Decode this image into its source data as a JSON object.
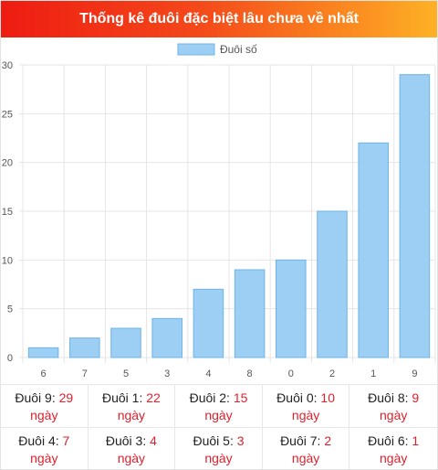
{
  "header": {
    "title": "Thống kê đuôi đặc biệt lâu chưa về nhất"
  },
  "colors": {
    "bar": "#9ccff3",
    "bar_border": "#6fb3e6",
    "grid": "#e5e5e5",
    "accent": "#e0202b"
  },
  "chart_data": {
    "type": "bar",
    "title": "",
    "xlabel": "",
    "ylabel": "",
    "categories": [
      "6",
      "7",
      "5",
      "3",
      "4",
      "8",
      "0",
      "2",
      "1",
      "9"
    ],
    "series": [
      {
        "name": "Đuôi số",
        "values": [
          1,
          2,
          3,
          4,
          7,
          9,
          10,
          15,
          22,
          29
        ]
      }
    ],
    "ylim": [
      0,
      30
    ],
    "yticks": [
      "0",
      "5",
      "10",
      "15",
      "20",
      "25",
      "30"
    ],
    "grid": true,
    "legend": "top-center"
  },
  "stats": [
    {
      "label": "Đuôi 9: ",
      "days": "29",
      "unit": "ngày"
    },
    {
      "label": "Đuôi 1: ",
      "days": "22",
      "unit": "ngày"
    },
    {
      "label": "Đuôi 2: ",
      "days": "15",
      "unit": "ngày"
    },
    {
      "label": "Đuôi 0: ",
      "days": "10",
      "unit": "ngày"
    },
    {
      "label": "Đuôi 8: ",
      "days": "9",
      "unit": "ngày"
    },
    {
      "label": "Đuôi 4: ",
      "days": "7",
      "unit": "ngày"
    },
    {
      "label": "Đuôi 3: ",
      "days": "4",
      "unit": "ngày"
    },
    {
      "label": "Đuôi 5: ",
      "days": "3",
      "unit": "ngày"
    },
    {
      "label": "Đuôi 7: ",
      "days": "2",
      "unit": "ngày"
    },
    {
      "label": "Đuôi 6: ",
      "days": "1",
      "unit": "ngày"
    }
  ]
}
